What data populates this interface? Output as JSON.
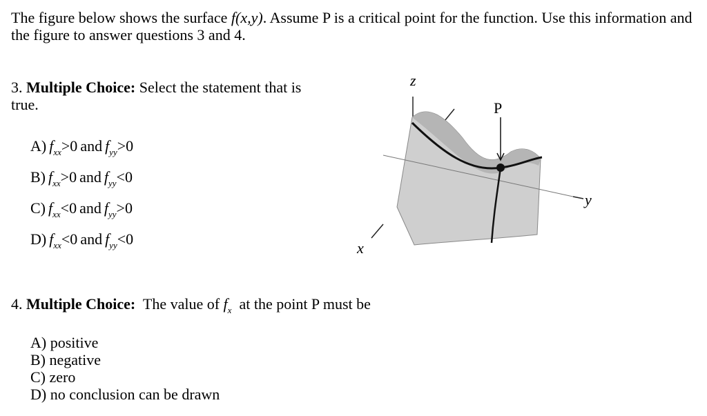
{
  "intro": {
    "before": "The figure below shows the surface ",
    "func": "f(x,y)",
    "after": ".  Assume P is a critical point for the function. Use this information and the figure to answer questions 3 and 4."
  },
  "q3": {
    "number": "3.",
    "heading": "Multiple Choice:",
    "text": "Select the statement that is true.",
    "options": [
      {
        "label": "A)",
        "f1": "f",
        "sub1": "xx",
        "rel1": ">0",
        "and": "and",
        "f2": "f",
        "sub2": "yy",
        "rel2": ">0"
      },
      {
        "label": "B)",
        "f1": "f",
        "sub1": "xx",
        "rel1": ">0",
        "and": "and",
        "f2": "f",
        "sub2": "yy",
        "rel2": "<0"
      },
      {
        "label": "C)",
        "f1": "f",
        "sub1": "xx",
        "rel1": "<0",
        "and": "and",
        "f2": "f",
        "sub2": "yy",
        "rel2": ">0"
      },
      {
        "label": "D)",
        "f1": "f",
        "sub1": "xx",
        "rel1": "<0",
        "and": "and",
        "f2": "f",
        "sub2": "yy",
        "rel2": "<0"
      }
    ]
  },
  "figure": {
    "z": "z",
    "p": "P",
    "y": "y",
    "x": "x"
  },
  "q4": {
    "number": "4.",
    "heading": "Multiple Choice:",
    "before": "The value of",
    "f": "f",
    "sub": "x",
    "after": "at the point P must be",
    "options": [
      "A) positive",
      "B) negative",
      "C) zero",
      "D) no conclusion can be drawn"
    ]
  }
}
